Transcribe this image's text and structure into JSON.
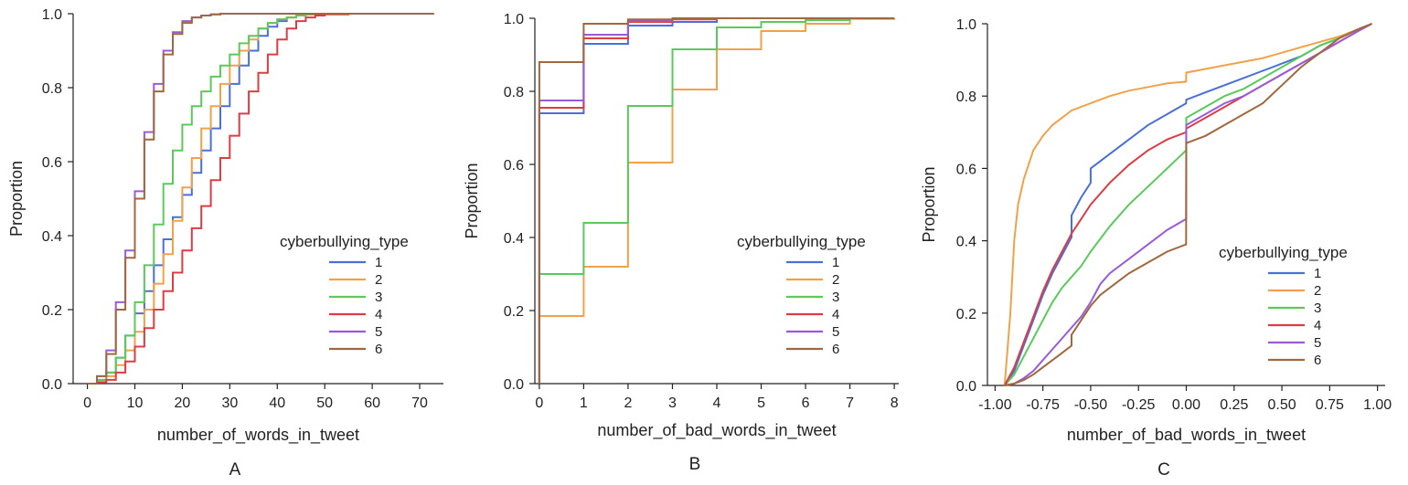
{
  "figure": {
    "colors": {
      "1": "#4a6fd6",
      "2": "#f0a24a",
      "3": "#5cc95c",
      "4": "#dc3d45",
      "5": "#9a5bd6",
      "6": "#a0683e"
    }
  },
  "chart_data": [
    {
      "type": "line",
      "subtype": "ecdf-step",
      "panel_label": "A",
      "xlabel": "number_of_words_in_tweet",
      "ylabel": "Proportion",
      "xlim": [
        -3,
        75
      ],
      "ylim": [
        0,
        1
      ],
      "xticks": [
        "0",
        "10",
        "20",
        "30",
        "40",
        "50",
        "60",
        "70"
      ],
      "yticks": [
        "0.0",
        "0.2",
        "0.4",
        "0.6",
        "0.8",
        "1.0"
      ],
      "legend": {
        "title": "cyberbullying_type",
        "entries": [
          "1",
          "2",
          "3",
          "4",
          "5",
          "6"
        ],
        "position": "center-right"
      },
      "series": [
        {
          "name": "1",
          "x": [
            0,
            2,
            4,
            6,
            8,
            10,
            12,
            14,
            16,
            18,
            20,
            22,
            24,
            26,
            28,
            30,
            32,
            34,
            36,
            38,
            40,
            42,
            44,
            46,
            48,
            50,
            55,
            73
          ],
          "y": [
            0,
            0.01,
            0.03,
            0.07,
            0.13,
            0.19,
            0.25,
            0.32,
            0.39,
            0.45,
            0.51,
            0.57,
            0.63,
            0.69,
            0.75,
            0.81,
            0.86,
            0.9,
            0.94,
            0.965,
            0.98,
            0.99,
            0.995,
            0.998,
            1.0,
            1.0,
            1.0,
            1.0
          ]
        },
        {
          "name": "2",
          "x": [
            0,
            2,
            4,
            6,
            8,
            10,
            12,
            14,
            16,
            18,
            20,
            22,
            24,
            26,
            28,
            30,
            32,
            34,
            36,
            38,
            40,
            42,
            44,
            46,
            48,
            50,
            55,
            73
          ],
          "y": [
            0,
            0.005,
            0.02,
            0.05,
            0.09,
            0.14,
            0.2,
            0.27,
            0.35,
            0.44,
            0.53,
            0.61,
            0.69,
            0.75,
            0.81,
            0.86,
            0.9,
            0.93,
            0.96,
            0.975,
            0.985,
            0.99,
            0.995,
            0.998,
            1.0,
            1.0,
            1.0,
            1.0
          ]
        },
        {
          "name": "3",
          "x": [
            0,
            2,
            4,
            6,
            8,
            10,
            12,
            14,
            16,
            18,
            20,
            22,
            24,
            26,
            28,
            30,
            32,
            34,
            36,
            38,
            40,
            42,
            44,
            46,
            48,
            50,
            55,
            73
          ],
          "y": [
            0,
            0.01,
            0.03,
            0.07,
            0.13,
            0.22,
            0.32,
            0.43,
            0.54,
            0.63,
            0.7,
            0.75,
            0.79,
            0.83,
            0.86,
            0.89,
            0.92,
            0.94,
            0.96,
            0.975,
            0.985,
            0.99,
            0.995,
            0.998,
            1.0,
            1.0,
            1.0,
            1.0
          ]
        },
        {
          "name": "4",
          "x": [
            0,
            2,
            4,
            6,
            8,
            10,
            12,
            14,
            16,
            18,
            20,
            22,
            24,
            26,
            28,
            30,
            32,
            34,
            36,
            38,
            40,
            42,
            44,
            46,
            48,
            50,
            55,
            73
          ],
          "y": [
            0,
            0.003,
            0.01,
            0.03,
            0.06,
            0.1,
            0.15,
            0.2,
            0.25,
            0.3,
            0.36,
            0.42,
            0.48,
            0.55,
            0.61,
            0.67,
            0.73,
            0.79,
            0.84,
            0.89,
            0.93,
            0.96,
            0.98,
            0.99,
            0.995,
            0.998,
            1.0,
            1.0
          ]
        },
        {
          "name": "5",
          "x": [
            0,
            2,
            4,
            6,
            8,
            10,
            12,
            14,
            16,
            18,
            20,
            22,
            24,
            26,
            28,
            30,
            35,
            40,
            50,
            73
          ],
          "y": [
            0,
            0.02,
            0.09,
            0.22,
            0.36,
            0.52,
            0.68,
            0.81,
            0.9,
            0.95,
            0.98,
            0.99,
            0.995,
            0.998,
            1.0,
            1.0,
            1.0,
            1.0,
            1.0,
            1.0
          ]
        },
        {
          "name": "6",
          "x": [
            0,
            2,
            4,
            6,
            8,
            10,
            12,
            14,
            16,
            18,
            20,
            22,
            24,
            26,
            28,
            30,
            35,
            40,
            50,
            73
          ],
          "y": [
            0,
            0.02,
            0.08,
            0.2,
            0.34,
            0.5,
            0.66,
            0.79,
            0.89,
            0.945,
            0.975,
            0.99,
            0.995,
            0.998,
            1.0,
            1.0,
            1.0,
            1.0,
            1.0,
            1.0
          ]
        }
      ]
    },
    {
      "type": "line",
      "subtype": "ecdf-step",
      "panel_label": "B",
      "xlabel": "number_of_bad_words_in_tweet",
      "ylabel": "Proportion",
      "xlim": [
        -0.1,
        8.1
      ],
      "ylim": [
        0,
        1
      ],
      "xticks": [
        "0",
        "1",
        "2",
        "3",
        "4",
        "5",
        "6",
        "7",
        "8"
      ],
      "yticks": [
        "0.0",
        "0.2",
        "0.4",
        "0.6",
        "0.8",
        "1.0"
      ],
      "legend": {
        "title": "cyberbullying_type",
        "entries": [
          "1",
          "2",
          "3",
          "4",
          "5",
          "6"
        ],
        "position": "center-right"
      },
      "series": [
        {
          "name": "1",
          "x": [
            0,
            1,
            2,
            3,
            4,
            5,
            6,
            7,
            8
          ],
          "y": [
            0.74,
            0.93,
            0.98,
            0.99,
            1.0,
            1.0,
            1.0,
            1.0,
            1.0
          ]
        },
        {
          "name": "2",
          "x": [
            0,
            1,
            2,
            3,
            4,
            5,
            6,
            7,
            8
          ],
          "y": [
            0.185,
            0.32,
            0.605,
            0.805,
            0.915,
            0.965,
            0.985,
            0.998,
            1.0
          ]
        },
        {
          "name": "3",
          "x": [
            0,
            1,
            2,
            3,
            4,
            5,
            6,
            7,
            8
          ],
          "y": [
            0.3,
            0.44,
            0.76,
            0.915,
            0.975,
            0.99,
            0.995,
            1.0,
            1.0
          ]
        },
        {
          "name": "4",
          "x": [
            0,
            1,
            2,
            3,
            4,
            5,
            6,
            7,
            8
          ],
          "y": [
            0.755,
            0.945,
            0.99,
            0.997,
            1.0,
            1.0,
            1.0,
            1.0,
            1.0
          ]
        },
        {
          "name": "5",
          "x": [
            0,
            1,
            2,
            3,
            4,
            5,
            6,
            7,
            8
          ],
          "y": [
            0.775,
            0.955,
            0.993,
            0.998,
            1.0,
            1.0,
            1.0,
            1.0,
            1.0
          ]
        },
        {
          "name": "6",
          "x": [
            0,
            1,
            2,
            3,
            4,
            5,
            6,
            7,
            8
          ],
          "y": [
            0.88,
            0.985,
            0.997,
            1.0,
            1.0,
            1.0,
            1.0,
            1.0,
            1.0
          ]
        }
      ]
    },
    {
      "type": "line",
      "subtype": "ecdf-step",
      "panel_label": "C",
      "xlabel": "number_of_bad_words_in_tweet",
      "ylabel": "Proportion",
      "xlim": [
        -1.04,
        1.04
      ],
      "ylim": [
        0,
        1
      ],
      "xticks": [
        "-1.00",
        "-0.75",
        "-0.50",
        "-0.25",
        "0.00",
        "0.25",
        "0.50",
        "0.75",
        "1.00"
      ],
      "yticks": [
        "0.0",
        "0.2",
        "0.4",
        "0.6",
        "0.8",
        "1.0"
      ],
      "legend": {
        "title": "cyberbullying_type",
        "entries": [
          "1",
          "2",
          "3",
          "4",
          "5",
          "6"
        ],
        "position": "center-right"
      },
      "series": [
        {
          "name": "1",
          "x": [
            -0.95,
            -0.9,
            -0.85,
            -0.8,
            -0.75,
            -0.7,
            -0.65,
            -0.6,
            -0.6,
            -0.55,
            -0.5,
            -0.5,
            -0.4,
            -0.3,
            -0.2,
            -0.1,
            -0.001,
            0.0,
            0.1,
            0.2,
            0.3,
            0.4,
            0.5,
            0.6,
            0.7,
            0.8,
            0.9,
            0.97
          ],
          "y": [
            0,
            0.04,
            0.11,
            0.18,
            0.25,
            0.31,
            0.36,
            0.41,
            0.47,
            0.52,
            0.56,
            0.6,
            0.64,
            0.68,
            0.72,
            0.75,
            0.78,
            0.79,
            0.81,
            0.83,
            0.85,
            0.87,
            0.89,
            0.91,
            0.94,
            0.96,
            0.985,
            1.0
          ]
        },
        {
          "name": "2",
          "x": [
            -0.95,
            -0.92,
            -0.9,
            -0.88,
            -0.85,
            -0.8,
            -0.75,
            -0.7,
            -0.6,
            -0.5,
            -0.4,
            -0.3,
            -0.2,
            -0.1,
            -0.001,
            0.0,
            0.1,
            0.2,
            0.3,
            0.4,
            0.5,
            0.6,
            0.7,
            0.8,
            0.9,
            0.97
          ],
          "y": [
            0,
            0.2,
            0.4,
            0.5,
            0.57,
            0.65,
            0.69,
            0.72,
            0.76,
            0.78,
            0.8,
            0.815,
            0.825,
            0.835,
            0.84,
            0.865,
            0.875,
            0.885,
            0.895,
            0.905,
            0.92,
            0.935,
            0.95,
            0.965,
            0.985,
            1.0
          ]
        },
        {
          "name": "3",
          "x": [
            -0.95,
            -0.9,
            -0.85,
            -0.8,
            -0.75,
            -0.7,
            -0.65,
            -0.6,
            -0.55,
            -0.5,
            -0.4,
            -0.3,
            -0.2,
            -0.1,
            -0.001,
            0.0,
            0.1,
            0.2,
            0.3,
            0.4,
            0.5,
            0.6,
            0.7,
            0.8,
            0.9,
            0.97
          ],
          "y": [
            0,
            0.03,
            0.08,
            0.13,
            0.18,
            0.23,
            0.27,
            0.3,
            0.33,
            0.37,
            0.44,
            0.5,
            0.55,
            0.6,
            0.65,
            0.74,
            0.77,
            0.8,
            0.82,
            0.85,
            0.88,
            0.91,
            0.94,
            0.96,
            0.985,
            1.0
          ]
        },
        {
          "name": "4",
          "x": [
            -0.95,
            -0.9,
            -0.85,
            -0.8,
            -0.75,
            -0.7,
            -0.65,
            -0.6,
            -0.55,
            -0.5,
            -0.4,
            -0.3,
            -0.2,
            -0.1,
            -0.001,
            0.0,
            0.1,
            0.2,
            0.3,
            0.4,
            0.5,
            0.6,
            0.7,
            0.8,
            0.9,
            0.97
          ],
          "y": [
            0,
            0.05,
            0.12,
            0.19,
            0.26,
            0.32,
            0.37,
            0.42,
            0.46,
            0.5,
            0.56,
            0.61,
            0.65,
            0.68,
            0.7,
            0.71,
            0.74,
            0.77,
            0.8,
            0.83,
            0.86,
            0.89,
            0.92,
            0.95,
            0.98,
            1.0
          ]
        },
        {
          "name": "5",
          "x": [
            -0.95,
            -0.9,
            -0.85,
            -0.8,
            -0.75,
            -0.7,
            -0.65,
            -0.6,
            -0.55,
            -0.5,
            -0.45,
            -0.4,
            -0.3,
            -0.2,
            -0.1,
            -0.001,
            0.0,
            0.1,
            0.2,
            0.3,
            0.4,
            0.5,
            0.6,
            0.7,
            0.8,
            0.9,
            0.97
          ],
          "y": [
            0,
            0.005,
            0.02,
            0.04,
            0.07,
            0.1,
            0.13,
            0.16,
            0.19,
            0.23,
            0.28,
            0.31,
            0.35,
            0.39,
            0.43,
            0.46,
            0.72,
            0.75,
            0.78,
            0.8,
            0.83,
            0.86,
            0.89,
            0.92,
            0.95,
            0.98,
            1.0
          ]
        },
        {
          "name": "6",
          "x": [
            -0.95,
            -0.9,
            -0.85,
            -0.8,
            -0.75,
            -0.7,
            -0.65,
            -0.6,
            -0.6,
            -0.55,
            -0.5,
            -0.45,
            -0.4,
            -0.3,
            -0.2,
            -0.1,
            -0.001,
            0.0,
            0.1,
            0.2,
            0.3,
            0.4,
            0.5,
            0.6,
            0.7,
            0.8,
            0.9,
            0.97
          ],
          "y": [
            0,
            0.005,
            0.015,
            0.03,
            0.05,
            0.07,
            0.09,
            0.11,
            0.14,
            0.18,
            0.22,
            0.25,
            0.27,
            0.31,
            0.34,
            0.37,
            0.39,
            0.67,
            0.69,
            0.72,
            0.75,
            0.78,
            0.83,
            0.88,
            0.92,
            0.96,
            0.985,
            1.0
          ]
        }
      ]
    }
  ]
}
